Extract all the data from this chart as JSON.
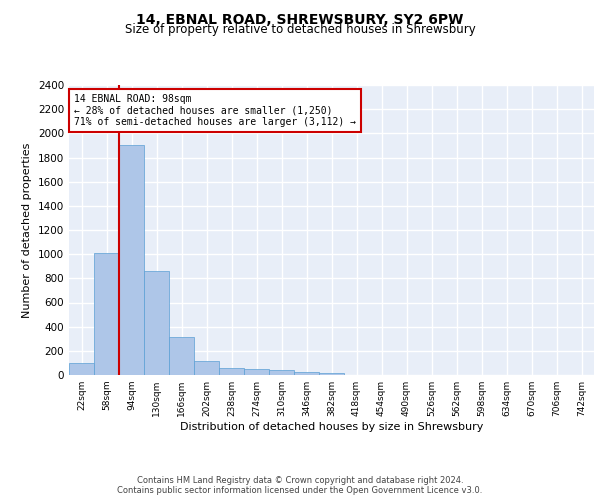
{
  "title1": "14, EBNAL ROAD, SHREWSBURY, SY2 6PW",
  "title2": "Size of property relative to detached houses in Shrewsbury",
  "xlabel": "Distribution of detached houses by size in Shrewsbury",
  "ylabel": "Number of detached properties",
  "bin_labels": [
    "22sqm",
    "58sqm",
    "94sqm",
    "130sqm",
    "166sqm",
    "202sqm",
    "238sqm",
    "274sqm",
    "310sqm",
    "346sqm",
    "382sqm",
    "418sqm",
    "454sqm",
    "490sqm",
    "526sqm",
    "562sqm",
    "598sqm",
    "634sqm",
    "670sqm",
    "706sqm",
    "742sqm"
  ],
  "bar_values": [
    100,
    1010,
    1900,
    860,
    315,
    120,
    60,
    50,
    40,
    25,
    20,
    0,
    0,
    0,
    0,
    0,
    0,
    0,
    0,
    0,
    0
  ],
  "bar_color": "#aec6e8",
  "bar_edge_color": "#5a9fd4",
  "property_line_bin": 2,
  "property_line_color": "#cc0000",
  "annotation_text": "14 EBNAL ROAD: 98sqm\n← 28% of detached houses are smaller (1,250)\n71% of semi-detached houses are larger (3,112) →",
  "annotation_box_color": "#cc0000",
  "ylim": [
    0,
    2400
  ],
  "yticks": [
    0,
    200,
    400,
    600,
    800,
    1000,
    1200,
    1400,
    1600,
    1800,
    2000,
    2200,
    2400
  ],
  "background_color": "#e8eef8",
  "grid_color": "#ffffff",
  "footer_text": "Contains HM Land Registry data © Crown copyright and database right 2024.\nContains public sector information licensed under the Open Government Licence v3.0.",
  "title1_fontsize": 10,
  "title2_fontsize": 8.5,
  "xlabel_fontsize": 8,
  "ylabel_fontsize": 8
}
